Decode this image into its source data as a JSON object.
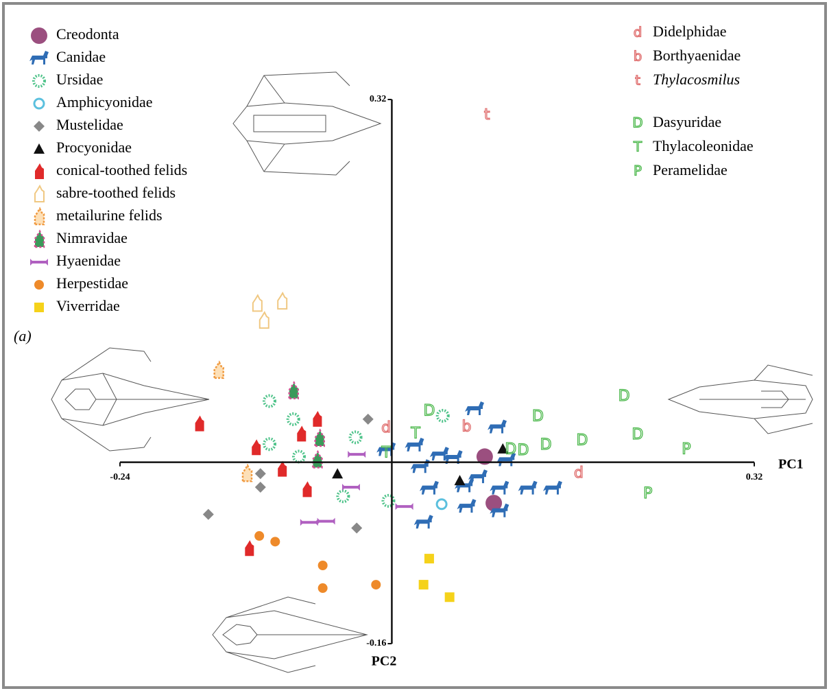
{
  "chart_data": {
    "type": "scatter",
    "panel_label": "(a)",
    "x_label": "PC1",
    "y_label": "PC2",
    "xlim": [
      -0.24,
      0.32
    ],
    "ylim": [
      -0.16,
      0.32
    ],
    "xticks": [
      -0.24,
      0.32
    ],
    "yticks": [
      -0.16,
      0.32
    ],
    "series": [
      {
        "name": "Creodonta",
        "color": "#9b4f7f",
        "marker": "circle",
        "x": [
          0.082,
          0.09
        ],
        "y": [
          0.005,
          -0.036
        ]
      },
      {
        "name": "Canidae",
        "color": "#2f6db5",
        "marker": "dog",
        "x": [
          0.093,
          0.101,
          0.033,
          0.064,
          0.095,
          0.142,
          0.066,
          0.095,
          0.073,
          -0.005,
          0.025,
          0.054,
          0.076,
          0.12,
          0.028,
          0.02,
          0.042
        ],
        "y": [
          0.031,
          0.002,
          -0.023,
          -0.021,
          -0.023,
          -0.023,
          -0.039,
          -0.043,
          0.047,
          0.011,
          -0.004,
          0.004,
          -0.013,
          -0.023,
          -0.053,
          0.015,
          0.007
        ]
      },
      {
        "name": "Ursidae",
        "color": "#4fc38a",
        "marker": "star",
        "x": [
          -0.087,
          -0.043,
          -0.003,
          -0.108,
          -0.108,
          -0.082,
          -0.032,
          0.045
        ],
        "y": [
          0.038,
          -0.03,
          -0.034,
          0.054,
          0.016,
          0.005,
          0.022,
          0.041
        ]
      },
      {
        "name": "Amphicyonidae",
        "color": "#5bc0de",
        "marker": "ring",
        "x": [
          0.044
        ],
        "y": [
          -0.037
        ]
      },
      {
        "name": "Mustelidae",
        "color": "#888888",
        "marker": "diamond",
        "x": [
          -0.021,
          -0.116,
          -0.116,
          -0.162,
          -0.031
        ],
        "y": [
          0.038,
          -0.01,
          -0.022,
          -0.046,
          -0.058
        ]
      },
      {
        "name": "Procyonidae",
        "color": "#111111",
        "marker": "triangle",
        "x": [
          0.098,
          0.06,
          -0.048
        ],
        "y": [
          0.012,
          -0.016,
          -0.01
        ]
      },
      {
        "name": "conical-toothed felids",
        "color": "#e02a2a",
        "marker": "cat",
        "x": [
          -0.12,
          -0.097,
          -0.08,
          -0.066,
          -0.075,
          -0.126,
          -0.17
        ],
        "y": [
          0.013,
          -0.006,
          0.025,
          0.038,
          -0.024,
          -0.076,
          0.034
        ]
      },
      {
        "name": "sabre-toothed felids",
        "color": "#f0c882",
        "marker": "cat-outline",
        "x": [
          -0.119,
          -0.097,
          -0.113
        ],
        "y": [
          0.14,
          0.142,
          0.125
        ]
      },
      {
        "name": "metailurine felids",
        "color": "#f09a40",
        "marker": "cat-striped",
        "x": [
          -0.153,
          -0.128
        ],
        "y": [
          0.081,
          -0.01
        ]
      },
      {
        "name": "Nimravidae",
        "color": "#3a9a5a",
        "marker": "cat-multi",
        "x": [
          -0.087,
          -0.064,
          -0.066
        ],
        "y": [
          0.063,
          0.021,
          0.002
        ]
      },
      {
        "name": "Hyaenidae",
        "color": "#b060c0",
        "marker": "bone",
        "x": [
          -0.031,
          -0.036,
          -0.073,
          -0.058,
          0.011
        ],
        "y": [
          0.007,
          -0.022,
          -0.053,
          -0.052,
          -0.039
        ]
      },
      {
        "name": "Herpestidae",
        "color": "#ee8a2a",
        "marker": "circle-small",
        "x": [
          -0.117,
          -0.103,
          -0.061,
          -0.061,
          -0.014
        ],
        "y": [
          -0.065,
          -0.07,
          -0.091,
          -0.111,
          -0.108
        ]
      },
      {
        "name": "Viverridae",
        "color": "#f5d21a",
        "marker": "square",
        "x": [
          0.033,
          0.028,
          0.051
        ],
        "y": [
          -0.085,
          -0.108,
          -0.119
        ]
      },
      {
        "name": "Didelphidae",
        "color": "#e07070",
        "marker": "letter",
        "symbol": "d",
        "x": [
          -0.005,
          0.165
        ],
        "y": [
          0.03,
          -0.01
        ]
      },
      {
        "name": "Borthyaenidae",
        "color": "#e07070",
        "marker": "letter",
        "symbol": "b",
        "x": [
          0.066
        ],
        "y": [
          0.031
        ]
      },
      {
        "name": "Thylacosmilus",
        "color": "#e07070",
        "marker": "letter",
        "symbol": "t",
        "italic": true,
        "x": [
          0.084
        ],
        "y": [
          0.306
        ]
      },
      {
        "name": "Dasyuridae",
        "color": "#4cb84c",
        "marker": "letter",
        "symbol": "D",
        "x": [
          0.033,
          0.129,
          0.205,
          0.168,
          0.136,
          0.217,
          0.105,
          0.116
        ],
        "y": [
          0.045,
          0.04,
          0.058,
          0.019,
          0.015,
          0.024,
          0.011,
          0.01
        ]
      },
      {
        "name": "Thylacoleonidae",
        "color": "#4cb84c",
        "marker": "letter",
        "symbol": "T",
        "x": [
          0.021,
          -0.005
        ],
        "y": [
          0.025,
          0.008
        ]
      },
      {
        "name": "Peramelidae",
        "color": "#4cb84c",
        "marker": "letter",
        "symbol": "P",
        "x": [
          0.26,
          0.226
        ],
        "y": [
          0.011,
          -0.028
        ]
      }
    ]
  }
}
